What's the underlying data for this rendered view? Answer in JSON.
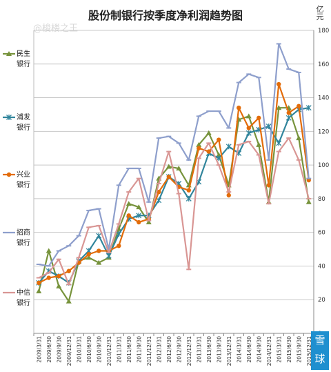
{
  "chart_data": {
    "type": "line",
    "title": "股份制银行按季度净利润趋势图",
    "ylabel": "亿元",
    "ylim": [
      0,
      180
    ],
    "yticks": [
      0,
      20,
      40,
      60,
      80,
      100,
      120,
      140,
      160,
      180
    ],
    "grid": true,
    "legend_position": "left",
    "watermark": "@梭楼之王",
    "x": [
      "2009/3/31",
      "2009/6/30",
      "2009/9/30",
      "2009/12/31",
      "2010/3/31",
      "2010/6/30",
      "2010/9/30",
      "2010/12/31",
      "2011/3/31",
      "2011/6/30",
      "2011/9/30",
      "2011/12/31",
      "2012/3/31",
      "2012/6/30",
      "2012/9/30",
      "2012/12/31",
      "2013/3/31",
      "2013/6/30",
      "2013/9/30",
      "2013/12/31",
      "2014/3/31",
      "2014/6/30",
      "2014/9/30",
      "2014/12/31",
      "2015/3/31",
      "2015/6/30",
      "2015/9/30",
      "2015/12/31"
    ],
    "series": [
      {
        "name": "民生银行",
        "color": "#77933c",
        "marker": "triangle",
        "values": [
          25,
          49,
          28,
          19,
          43,
          45,
          42,
          45,
          62,
          77,
          75,
          66,
          92,
          99,
          98,
          88,
          112,
          119,
          106,
          88,
          127,
          129,
          112,
          78,
          134,
          134,
          116,
          78
        ]
      },
      {
        "name": "浦发银行",
        "color": "#31859c",
        "marker": "star",
        "values": [
          30,
          37,
          34,
          30,
          43,
          49,
          58,
          46,
          59,
          68,
          70,
          70,
          79,
          93,
          89,
          80,
          90,
          107,
          104,
          111,
          107,
          119,
          121,
          123,
          113,
          128,
          133,
          134
        ]
      },
      {
        "name": "兴业银行",
        "color": "#e36c09",
        "marker": "circle",
        "values": [
          30,
          33,
          34,
          37,
          42,
          47,
          49,
          49,
          52,
          70,
          66,
          68,
          84,
          93,
          87,
          85,
          110,
          108,
          115,
          82,
          134,
          122,
          128,
          88,
          148,
          131,
          135,
          91
        ]
      },
      {
        "name": "招商银行",
        "color": "#8e9fcc",
        "marker": "dash",
        "values": [
          41,
          40,
          49,
          52,
          58,
          73,
          74,
          50,
          88,
          98,
          98,
          78,
          116,
          117,
          113,
          103,
          129,
          132,
          132,
          122,
          149,
          154,
          152,
          103,
          172,
          157,
          155,
          92
        ]
      },
      {
        "name": "中信银行",
        "color": "#d99694",
        "marker": "dash",
        "values": [
          33,
          36,
          44,
          29,
          45,
          63,
          64,
          48,
          65,
          84,
          92,
          67,
          89,
          108,
          83,
          38,
          104,
          113,
          100,
          84,
          112,
          114,
          106,
          77,
          108,
          116,
          103,
          80
        ]
      }
    ]
  },
  "badge": {
    "text1": "雪",
    "text2": "球"
  }
}
